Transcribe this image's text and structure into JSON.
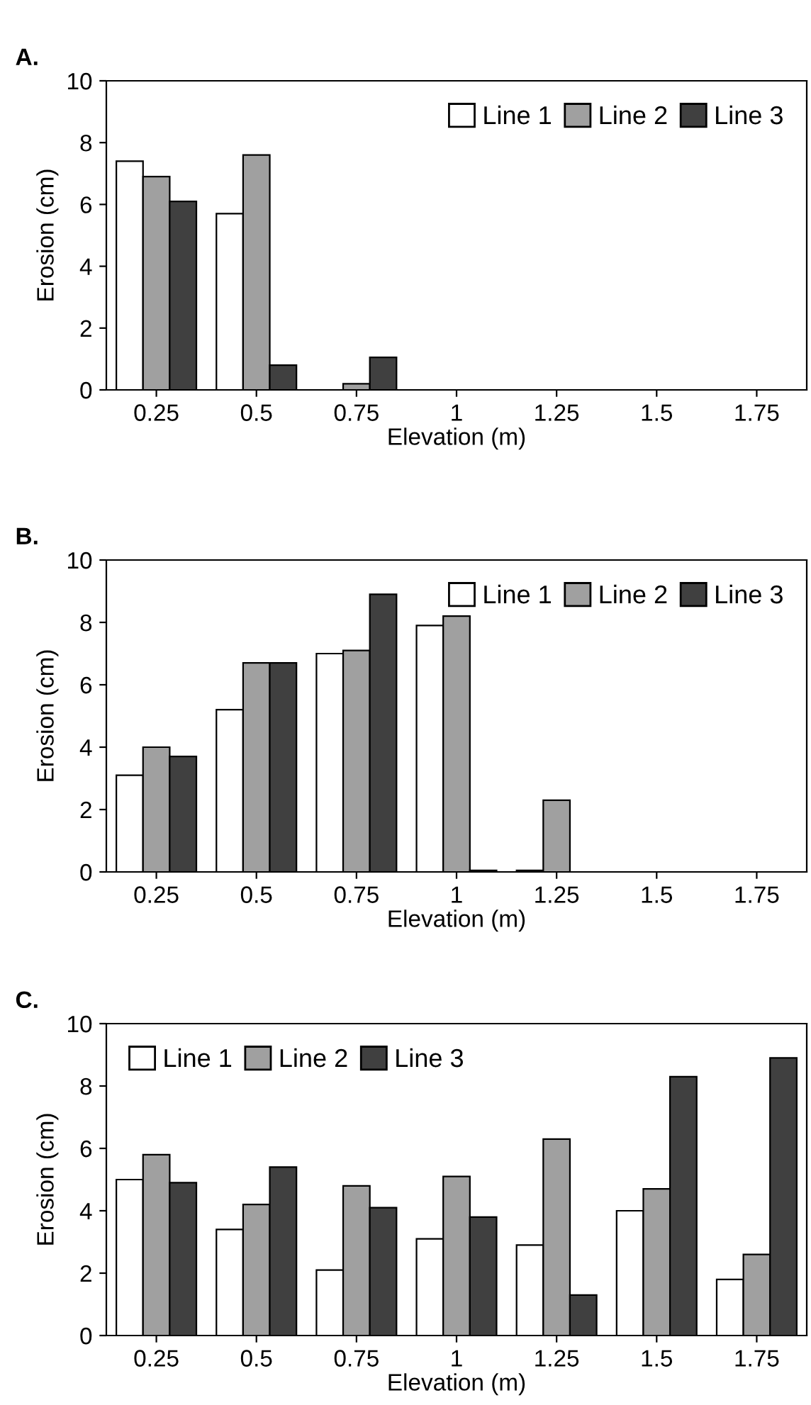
{
  "chart_data": [
    {
      "type": "bar",
      "title": "A.",
      "xlabel": "Elevation (m)",
      "ylabel": "Erosion (cm)",
      "categories": [
        "0.25",
        "0.5",
        "0.75",
        "1",
        "1.25",
        "1.5",
        "1.75"
      ],
      "ylim": [
        0,
        10
      ],
      "yticks": [
        0,
        2,
        4,
        6,
        8,
        10
      ],
      "grid": false,
      "legend": "top right",
      "series": [
        {
          "name": "Line 1",
          "color": "#ffffff",
          "values": [
            7.4,
            5.7,
            0,
            0,
            0,
            0,
            0
          ]
        },
        {
          "name": "Line 2",
          "color": "#a0a0a0",
          "values": [
            6.9,
            7.6,
            0.2,
            0,
            0,
            0,
            0
          ]
        },
        {
          "name": "Line 3",
          "color": "#404040",
          "values": [
            6.1,
            0.8,
            1.05,
            0,
            0,
            0,
            0
          ]
        }
      ]
    },
    {
      "type": "bar",
      "title": "B.",
      "xlabel": "Elevation (m)",
      "ylabel": "Erosion (cm)",
      "categories": [
        "0.25",
        "0.5",
        "0.75",
        "1",
        "1.25",
        "1.5",
        "1.75"
      ],
      "ylim": [
        0,
        10
      ],
      "yticks": [
        0,
        2,
        4,
        6,
        8,
        10
      ],
      "grid": false,
      "legend": "top right",
      "series": [
        {
          "name": "Line 1",
          "color": "#ffffff",
          "values": [
            3.1,
            5.2,
            7.0,
            7.9,
            0.05,
            0,
            0
          ]
        },
        {
          "name": "Line 2",
          "color": "#a0a0a0",
          "values": [
            4.0,
            6.7,
            7.1,
            8.2,
            2.3,
            0,
            0
          ]
        },
        {
          "name": "Line 3",
          "color": "#404040",
          "values": [
            3.7,
            6.7,
            8.9,
            0.05,
            0,
            0,
            0
          ]
        }
      ]
    },
    {
      "type": "bar",
      "title": "C.",
      "xlabel": "Elevation (m)",
      "ylabel": "Erosion (cm)",
      "categories": [
        "0.25",
        "0.5",
        "0.75",
        "1",
        "1.25",
        "1.5",
        "1.75"
      ],
      "ylim": [
        0,
        10
      ],
      "yticks": [
        0,
        2,
        4,
        6,
        8,
        10
      ],
      "grid": false,
      "legend": "top left",
      "series": [
        {
          "name": "Line 1",
          "color": "#ffffff",
          "values": [
            5.0,
            3.4,
            2.1,
            3.1,
            2.9,
            4.0,
            1.8
          ]
        },
        {
          "name": "Line 2",
          "color": "#a0a0a0",
          "values": [
            5.8,
            4.2,
            4.8,
            5.1,
            6.3,
            4.7,
            2.6
          ]
        },
        {
          "name": "Line 3",
          "color": "#404040",
          "values": [
            4.9,
            5.4,
            4.1,
            3.8,
            1.3,
            8.3,
            8.9
          ]
        }
      ]
    }
  ]
}
